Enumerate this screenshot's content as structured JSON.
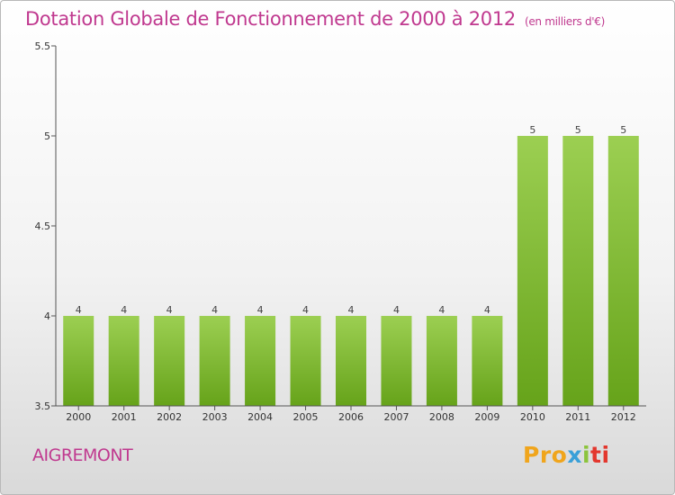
{
  "chart_data": {
    "type": "bar",
    "title": "Dotation Globale de Fonctionnement de 2000 à 2012",
    "unit": "(en milliers d'€)",
    "categories": [
      "2000",
      "2001",
      "2002",
      "2003",
      "2004",
      "2005",
      "2006",
      "2007",
      "2008",
      "2009",
      "2010",
      "2011",
      "2012"
    ],
    "values": [
      4,
      4,
      4,
      4,
      4,
      4,
      4,
      4,
      4,
      4,
      5,
      5,
      5
    ],
    "value_labels": [
      "4",
      "4",
      "4",
      "4",
      "4",
      "4",
      "4",
      "4",
      "4",
      "4",
      "5",
      "5",
      "5"
    ],
    "ylim": [
      3.5,
      5.5
    ],
    "yticks": [
      "3.5",
      "4",
      "4.5",
      "5",
      "5.5"
    ],
    "xlabel": "",
    "ylabel": "",
    "grid": false,
    "bar_color_top": "#9ccf52",
    "bar_color_bottom": "#66a31a"
  },
  "place": "AIGREMONT",
  "logo": {
    "parts": [
      "Pro",
      "x",
      "i",
      "ti"
    ]
  },
  "colors": {
    "title": "#c0398f",
    "axis": "#555555"
  }
}
